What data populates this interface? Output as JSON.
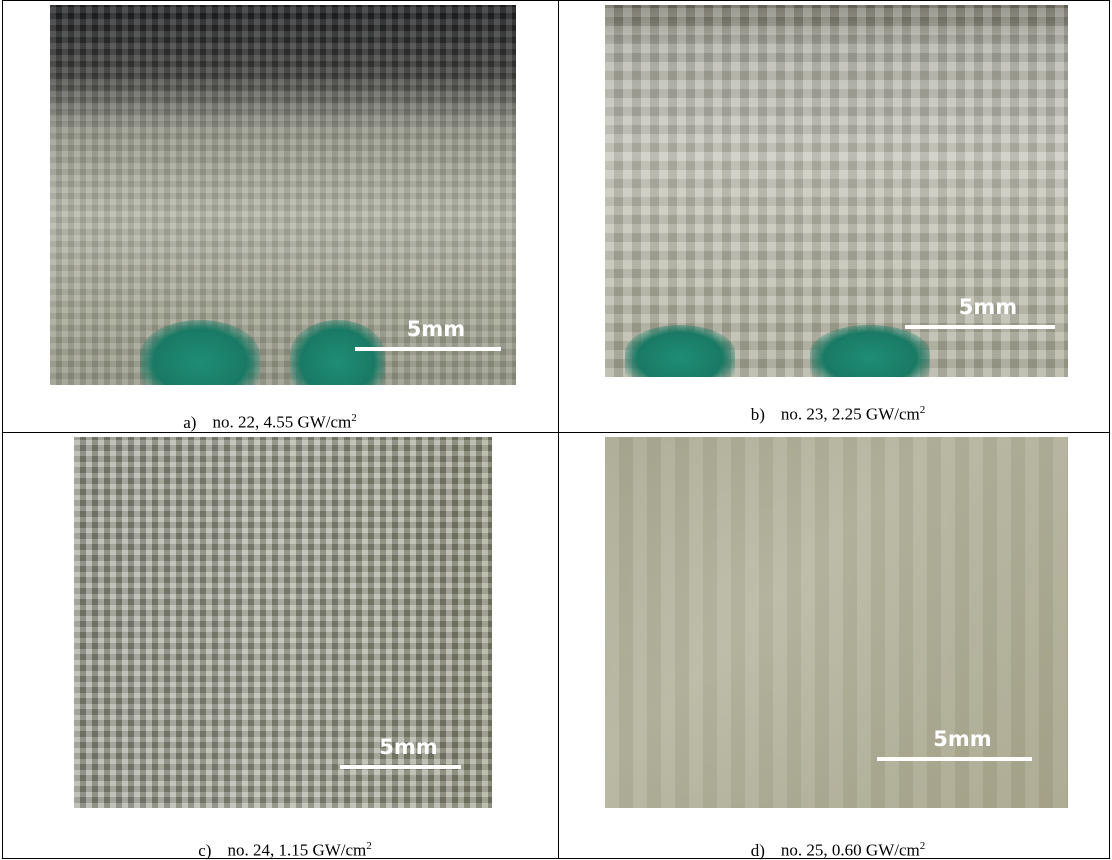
{
  "panels": [
    {
      "label": "a)",
      "caption": "no. 22, 4.55 GW/cm",
      "exponent": "2",
      "scale_bar": "5mm"
    },
    {
      "label": "b)",
      "caption": "no. 23, 2.25 GW/cm",
      "exponent": "2",
      "scale_bar": "5mm"
    },
    {
      "label": "c)",
      "caption": "no. 24, 1.15 GW/cm",
      "exponent": "2",
      "scale_bar": "5mm"
    },
    {
      "label": "d)",
      "caption": "no. 25, 0.60 GW/cm",
      "exponent": "2",
      "scale_bar": "5mm"
    }
  ]
}
